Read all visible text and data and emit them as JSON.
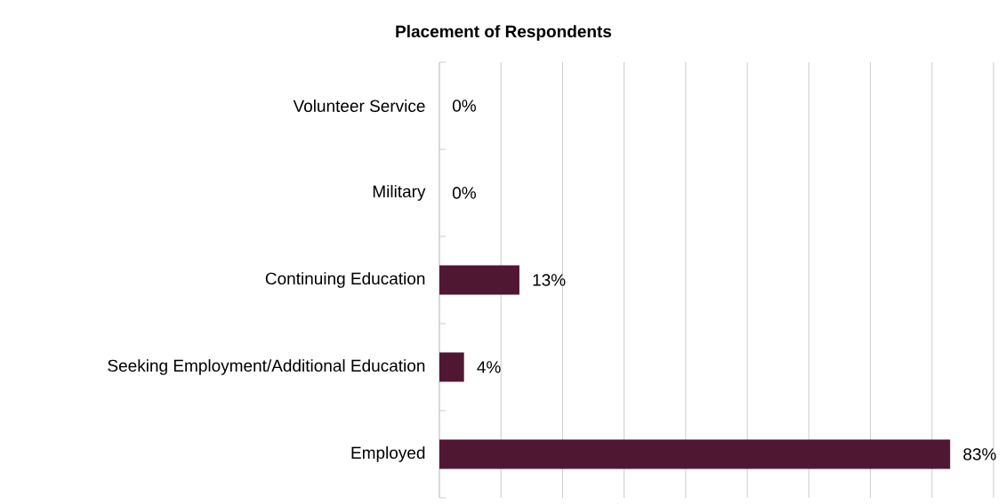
{
  "chart_data": {
    "type": "bar",
    "orientation": "horizontal",
    "title": "Placement of Respondents",
    "categories": [
      "Volunteer Service",
      "Military",
      "Continuing Education",
      "Seeking Employment/Additional Education",
      "Employed"
    ],
    "values": [
      0,
      0,
      13,
      4,
      83
    ],
    "value_labels": [
      "0%",
      "0%",
      "13%",
      "4%",
      "83%"
    ],
    "color": "#501733",
    "tick_labels": "y",
    "grid": "x"
  }
}
